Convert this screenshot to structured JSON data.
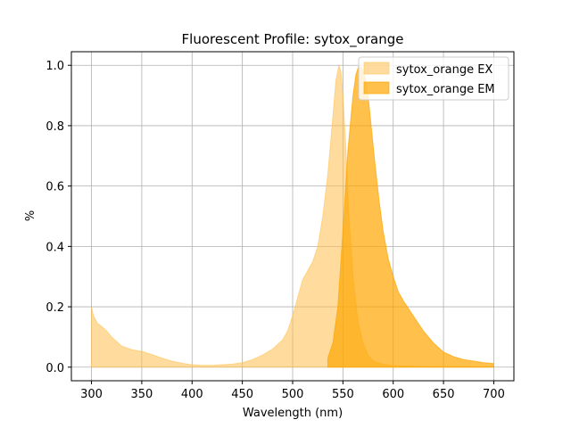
{
  "chart_data": {
    "type": "area",
    "title": "Fluorescent Profile: sytox_orange",
    "xlabel": "Wavelength (nm)",
    "ylabel": "%",
    "xlim": [
      280,
      720
    ],
    "ylim": [
      -0.045,
      1.045
    ],
    "xticks": [
      300,
      350,
      400,
      450,
      500,
      550,
      600,
      650,
      700
    ],
    "yticks": [
      0.0,
      0.2,
      0.4,
      0.6,
      0.8,
      1.0
    ],
    "grid": true,
    "legend_position": "top-right",
    "series": [
      {
        "name": "sytox_orange EX",
        "color": "#ffc04d",
        "opacity": 0.55,
        "x": [
          300,
          302,
          306,
          310,
          315,
          320,
          325,
          330,
          340,
          350,
          360,
          370,
          380,
          390,
          400,
          410,
          420,
          430,
          440,
          450,
          460,
          470,
          480,
          490,
          495,
          500,
          505,
          510,
          515,
          520,
          525,
          530,
          535,
          540,
          543,
          546,
          548,
          550,
          553,
          556,
          560,
          565,
          570,
          575,
          580,
          590,
          600,
          620,
          650,
          700
        ],
        "y": [
          0.2,
          0.17,
          0.145,
          0.135,
          0.12,
          0.1,
          0.085,
          0.07,
          0.058,
          0.052,
          0.042,
          0.03,
          0.02,
          0.013,
          0.008,
          0.006,
          0.006,
          0.008,
          0.01,
          0.015,
          0.025,
          0.04,
          0.06,
          0.09,
          0.12,
          0.17,
          0.23,
          0.29,
          0.32,
          0.35,
          0.4,
          0.5,
          0.64,
          0.83,
          0.95,
          1.0,
          0.98,
          0.9,
          0.72,
          0.5,
          0.3,
          0.15,
          0.08,
          0.04,
          0.02,
          0.01,
          0.005,
          0.003,
          0.002,
          0.001
        ]
      },
      {
        "name": "sytox_orange EM",
        "color": "#ffa500",
        "opacity": 0.7,
        "x": [
          535,
          540,
          545,
          550,
          555,
          560,
          563,
          566,
          569,
          572,
          575,
          578,
          582,
          586,
          590,
          595,
          600,
          605,
          610,
          620,
          630,
          640,
          650,
          660,
          670,
          680,
          690,
          700
        ],
        "y": [
          0.03,
          0.08,
          0.2,
          0.45,
          0.72,
          0.9,
          0.97,
          1.0,
          0.99,
          0.96,
          0.9,
          0.8,
          0.67,
          0.55,
          0.45,
          0.36,
          0.3,
          0.25,
          0.22,
          0.17,
          0.12,
          0.08,
          0.05,
          0.035,
          0.025,
          0.02,
          0.015,
          0.012
        ]
      }
    ]
  }
}
